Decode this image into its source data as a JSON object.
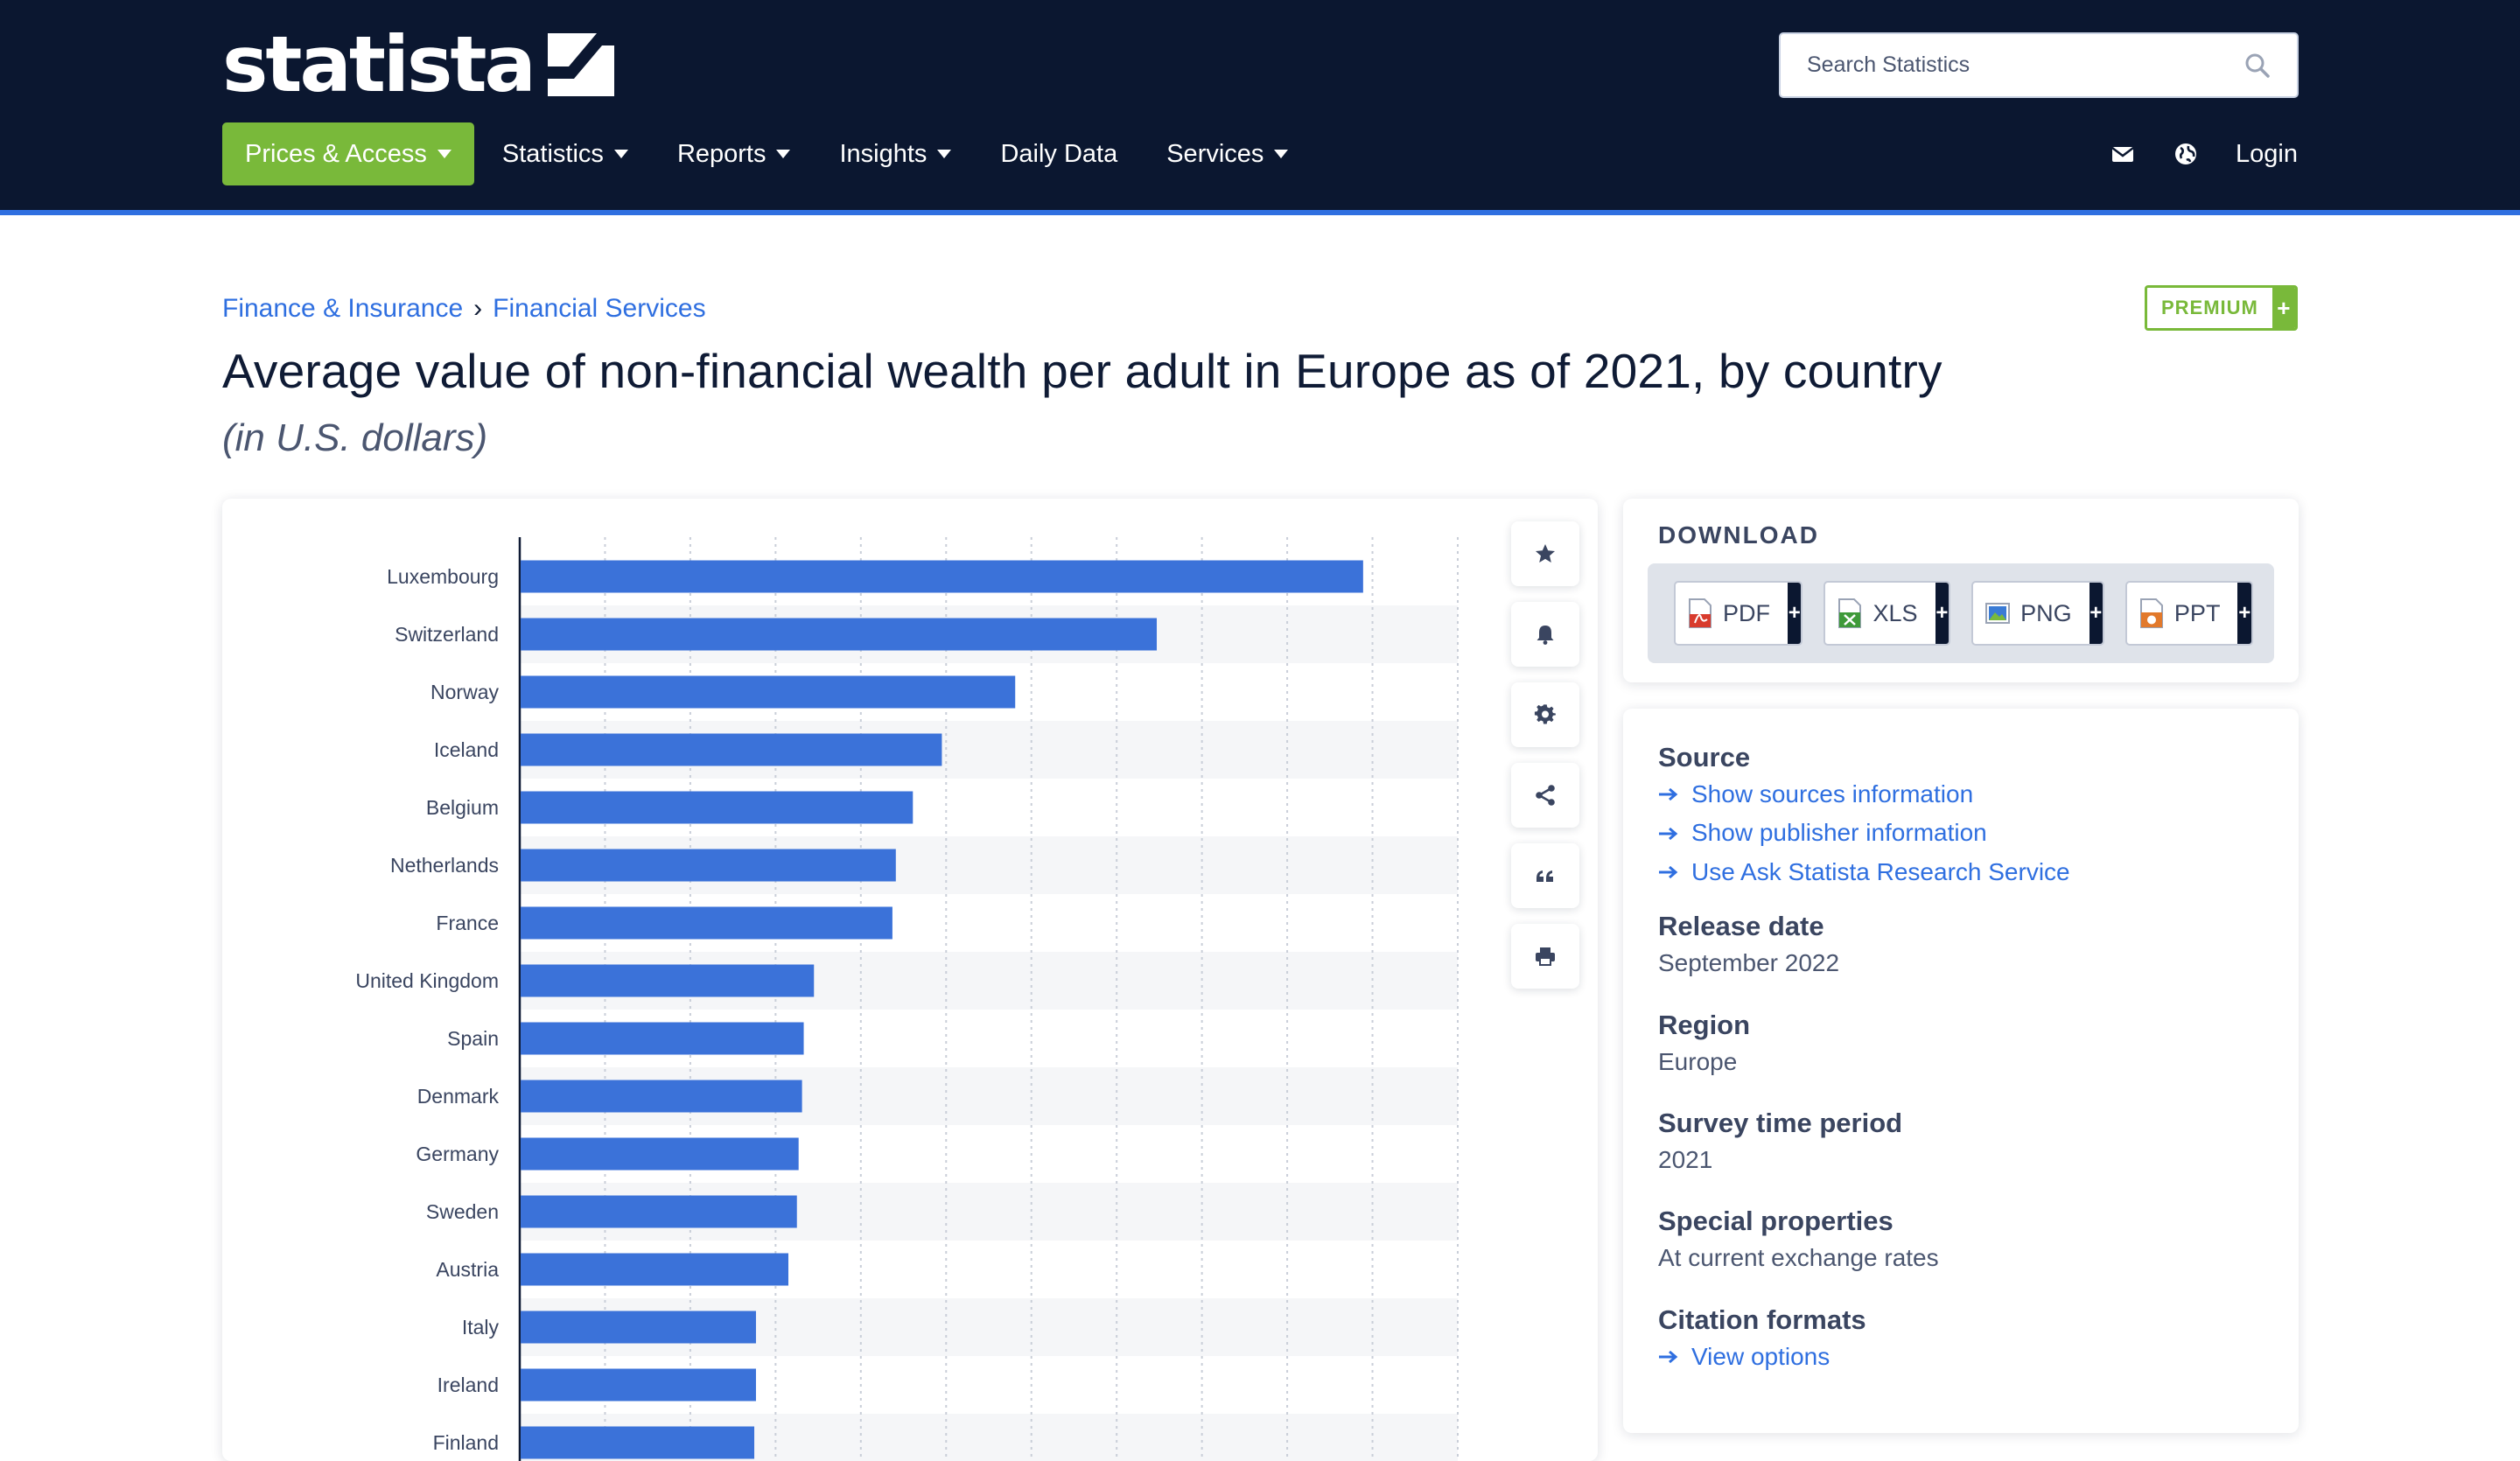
{
  "header": {
    "logo_text": "statista",
    "search_placeholder": "Search Statistics",
    "nav": [
      {
        "label": "Prices & Access",
        "dropdown": true
      },
      {
        "label": "Statistics",
        "dropdown": true
      },
      {
        "label": "Reports",
        "dropdown": true
      },
      {
        "label": "Insights",
        "dropdown": true
      },
      {
        "label": "Daily Data",
        "dropdown": false
      },
      {
        "label": "Services",
        "dropdown": true
      }
    ],
    "login_label": "Login",
    "icons": [
      "mail-icon",
      "globe-icon"
    ]
  },
  "breadcrumb": {
    "items": [
      "Finance & Insurance",
      "Financial Services"
    ],
    "separator": "›"
  },
  "premium_label": "PREMIUM",
  "premium_plus": "+",
  "title": "Average value of non-financial wealth per adult in Europe as of 2021, by country",
  "subtitle": "(in U.S. dollars)",
  "chart_data": {
    "type": "bar",
    "orientation": "horizontal",
    "categories": [
      "Luxembourg",
      "Switzerland",
      "Norway",
      "Iceland",
      "Belgium",
      "Netherlands",
      "France",
      "United Kingdom",
      "Spain",
      "Denmark",
      "Germany",
      "Sweden",
      "Austria",
      "Italy",
      "Ireland",
      "Finland"
    ],
    "values": [
      494000,
      373000,
      290000,
      247000,
      230000,
      220000,
      218000,
      172000,
      166000,
      165000,
      163000,
      162000,
      157000,
      138000,
      138000,
      137000
    ],
    "xlim": [
      0,
      550000
    ],
    "grid": true,
    "bar_color": "#3b72d9"
  },
  "tools": [
    "star-icon",
    "bell-icon",
    "gear-icon",
    "share-icon",
    "quote-icon",
    "print-icon"
  ],
  "download": {
    "title": "DOWNLOAD",
    "buttons": [
      {
        "label": "PDF",
        "icon": "pdf-file-icon",
        "color": "#d83b2d"
      },
      {
        "label": "XLS",
        "icon": "xls-file-icon",
        "color": "#3f9a3a"
      },
      {
        "label": "PNG",
        "icon": "png-file-icon",
        "color": "#3a7bd5"
      },
      {
        "label": "PPT",
        "icon": "ppt-file-icon",
        "color": "#e2792b"
      }
    ],
    "plus": "+"
  },
  "info": {
    "source_head": "Source",
    "source_links": [
      "Show sources information",
      "Show publisher information",
      "Use Ask Statista Research Service"
    ],
    "release_head": "Release date",
    "release_val": "September 2022",
    "region_head": "Region",
    "region_val": "Europe",
    "survey_head": "Survey time period",
    "survey_val": "2021",
    "special_head": "Special properties",
    "special_val": "At current exchange rates",
    "citation_head": "Citation formats",
    "citation_link": "View options"
  },
  "colors": {
    "header_bg": "#0b1730",
    "accent_green": "#79b93a",
    "link_blue": "#2f6fe0",
    "bar_blue": "#3b72d9"
  }
}
